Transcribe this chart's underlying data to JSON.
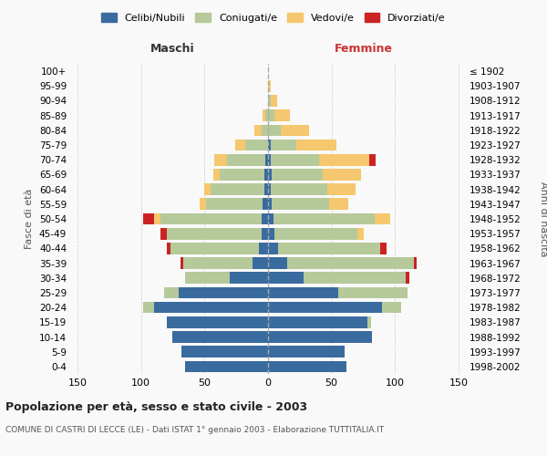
{
  "age_groups": [
    "0-4",
    "5-9",
    "10-14",
    "15-19",
    "20-24",
    "25-29",
    "30-34",
    "35-39",
    "40-44",
    "45-49",
    "50-54",
    "55-59",
    "60-64",
    "65-69",
    "70-74",
    "75-79",
    "80-84",
    "85-89",
    "90-94",
    "95-99",
    "100+"
  ],
  "birth_years": [
    "1998-2002",
    "1993-1997",
    "1988-1992",
    "1983-1987",
    "1978-1982",
    "1973-1977",
    "1968-1972",
    "1963-1967",
    "1958-1962",
    "1953-1957",
    "1948-1952",
    "1943-1947",
    "1938-1942",
    "1933-1937",
    "1928-1932",
    "1923-1927",
    "1918-1922",
    "1913-1917",
    "1908-1912",
    "1903-1907",
    "≤ 1902"
  ],
  "maschi_celibi": [
    65,
    68,
    75,
    80,
    90,
    70,
    30,
    12,
    7,
    5,
    5,
    4,
    3,
    3,
    2,
    0,
    0,
    0,
    0,
    0,
    0
  ],
  "maschi_coniugati": [
    0,
    0,
    0,
    0,
    8,
    12,
    35,
    55,
    70,
    75,
    80,
    45,
    42,
    35,
    30,
    18,
    5,
    2,
    0,
    0,
    0
  ],
  "maschi_vedovi": [
    0,
    0,
    0,
    0,
    0,
    0,
    0,
    0,
    0,
    0,
    5,
    5,
    5,
    5,
    10,
    8,
    6,
    2,
    0,
    0,
    0
  ],
  "maschi_divorziati": [
    0,
    0,
    0,
    0,
    0,
    0,
    0,
    2,
    3,
    5,
    8,
    0,
    0,
    0,
    0,
    0,
    0,
    0,
    0,
    0,
    0
  ],
  "femmine_celibi": [
    62,
    60,
    82,
    78,
    90,
    55,
    28,
    15,
    8,
    5,
    4,
    3,
    2,
    3,
    2,
    2,
    0,
    0,
    0,
    0,
    0
  ],
  "femmine_coniugati": [
    0,
    0,
    0,
    3,
    15,
    55,
    80,
    100,
    80,
    65,
    80,
    45,
    45,
    40,
    38,
    20,
    10,
    5,
    2,
    0,
    0
  ],
  "femmine_vedovi": [
    0,
    0,
    0,
    0,
    0,
    0,
    0,
    0,
    0,
    5,
    12,
    15,
    22,
    30,
    40,
    32,
    22,
    12,
    5,
    2,
    0
  ],
  "femmine_divorziati": [
    0,
    0,
    0,
    0,
    0,
    0,
    3,
    2,
    5,
    0,
    0,
    0,
    0,
    0,
    5,
    0,
    0,
    0,
    0,
    0,
    0
  ],
  "colors": {
    "celibi": "#3a6b9f",
    "coniugati": "#b5c99a",
    "vedovi": "#f5c76e",
    "divorziati": "#cc2222"
  },
  "title": "Popolazione per età, sesso e stato civile - 2003",
  "subtitle": "COMUNE DI CASTRI DI LECCE (LE) - Dati ISTAT 1° gennaio 2003 - Elaborazione TUTTITALIA.IT",
  "ylabel_left": "Fasce di età",
  "ylabel_right": "Anni di nascita",
  "xlabel_left": "Maschi",
  "xlabel_right": "Femmine",
  "xlim": 155,
  "bg_color": "#f9f9f9",
  "grid_color": "#cccccc"
}
